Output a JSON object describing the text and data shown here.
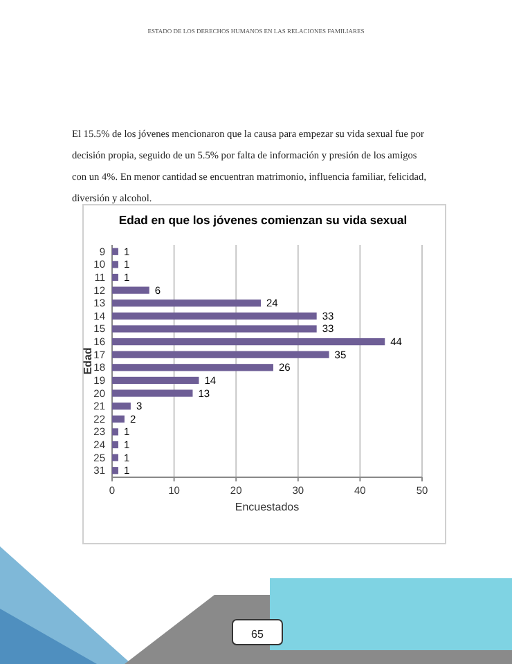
{
  "chart_data": {
    "type": "bar",
    "orientation": "horizontal",
    "title": "Edad en que los jóvenes comienzan su vida sexual",
    "xlabel": "Encuestados",
    "ylabel": "Edad",
    "categories": [
      "9",
      "10",
      "11",
      "12",
      "13",
      "14",
      "15",
      "16",
      "17",
      "18",
      "19",
      "20",
      "21",
      "22",
      "23",
      "24",
      "25",
      "31"
    ],
    "values": [
      1,
      1,
      1,
      6,
      24,
      33,
      33,
      44,
      35,
      26,
      14,
      13,
      3,
      2,
      1,
      1,
      1,
      1
    ],
    "color": "#6e5e96",
    "xlim": [
      0,
      50
    ],
    "xticks": [
      0,
      10,
      20,
      30,
      40,
      50
    ],
    "grid": "x",
    "data_labels": true,
    "annotations": [
      "ESTADO DE LOS DERECHOS HUMANOS EN LAS RELACIONES FAMILIARES",
      "El 15.5% de los jóvenes mencionaron que la causa para empezar su vida sexual fue por decisión propia, seguido de un 5.5% por  falta de información y presión de los amigos con un 4%. En menor cantidad se encuentran matrimonio, influencia familiar, felicidad, diversión y alcohol.",
      "65"
    ]
  }
}
